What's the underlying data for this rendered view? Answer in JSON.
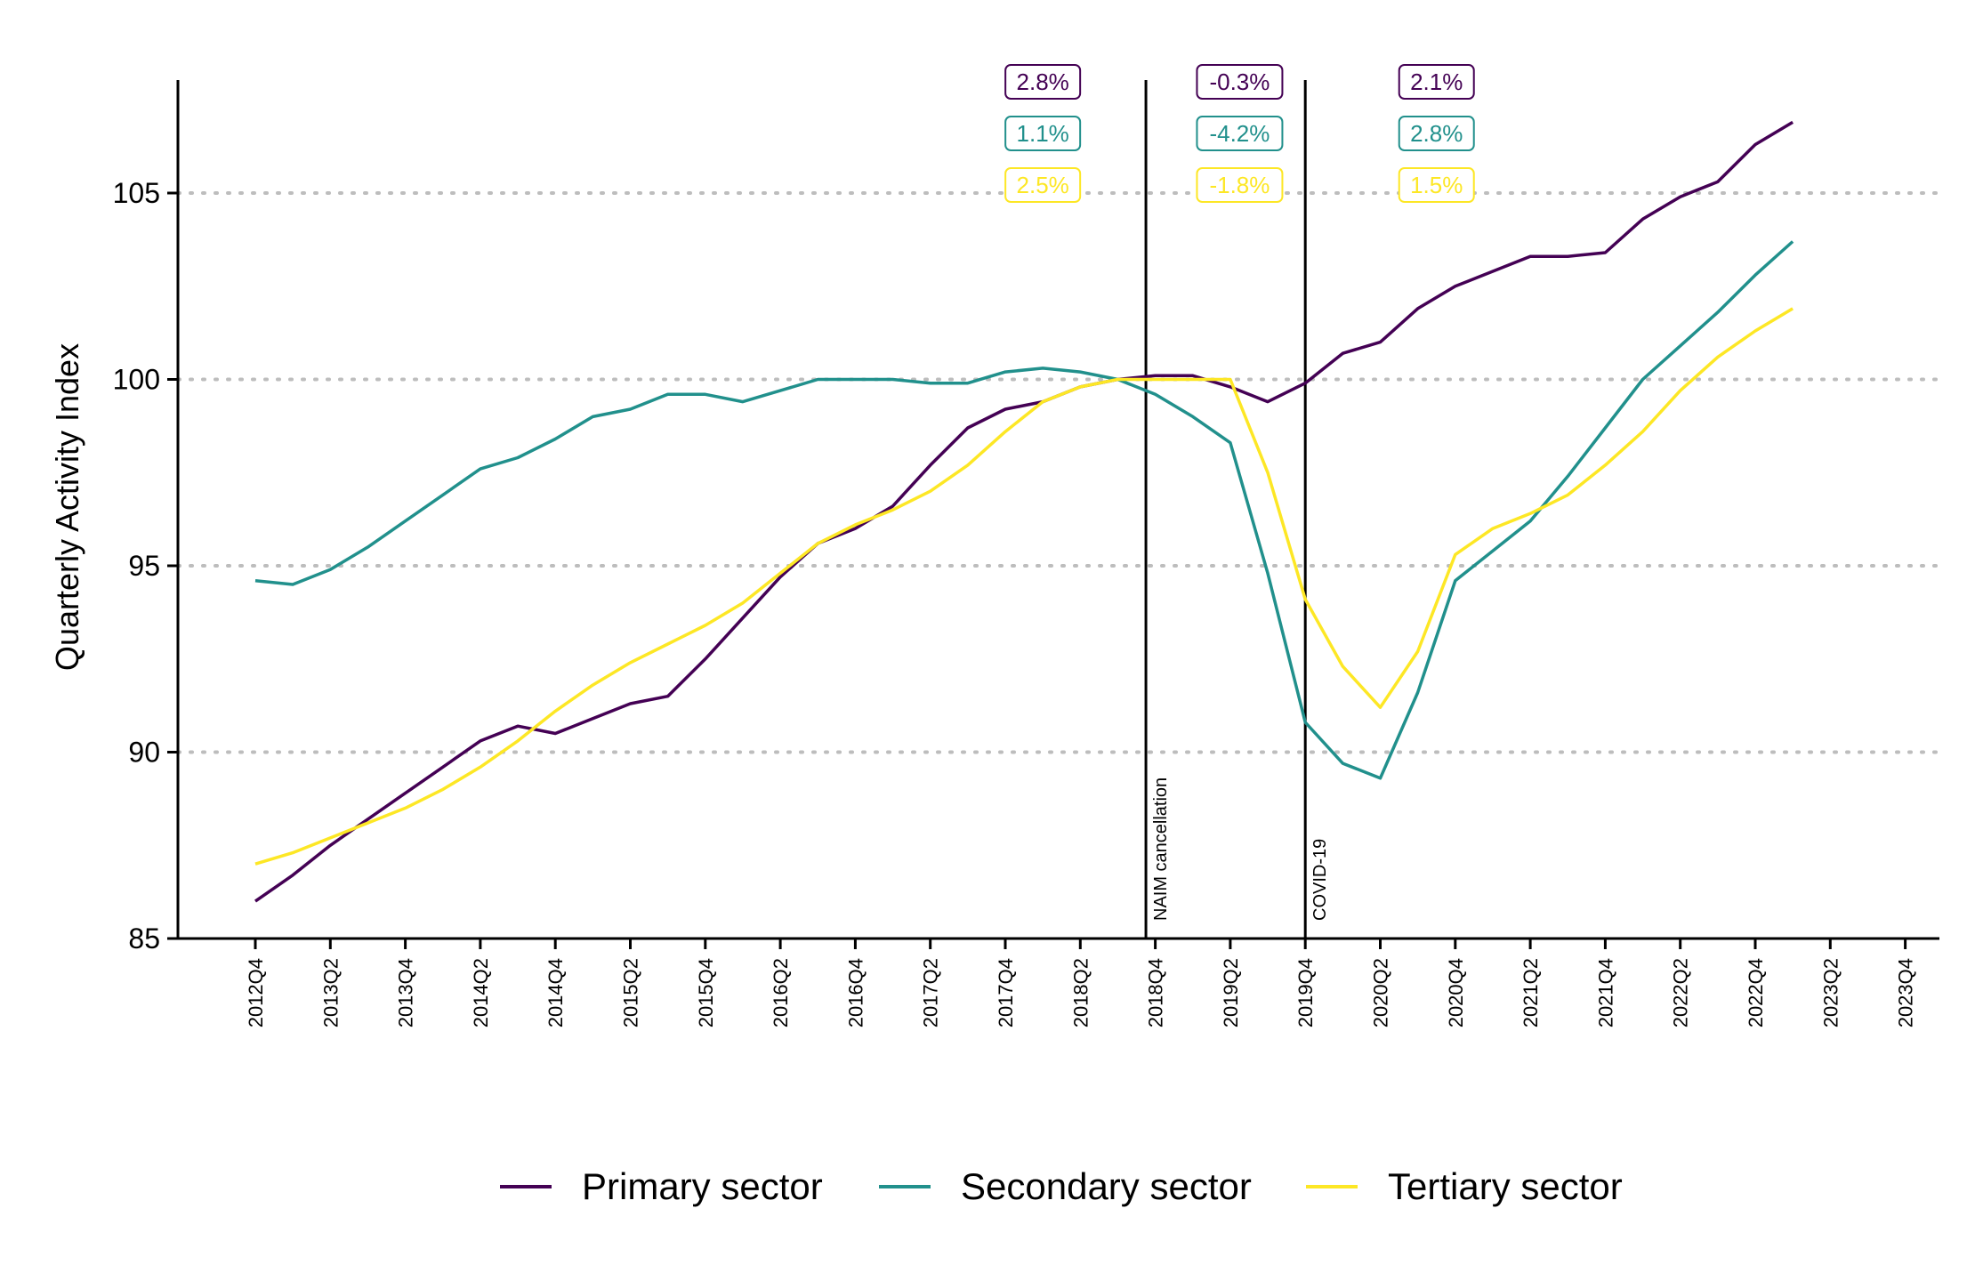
{
  "chart_data": {
    "type": "line",
    "title": "",
    "xlabel": "",
    "ylabel": "Quarterly Activity Index",
    "ylim": [
      85,
      108
    ],
    "yticks": [
      85,
      90,
      95,
      100,
      105
    ],
    "grid": "horizontal dotted at 90, 95, 100, 105",
    "legend_position": "bottom",
    "x": [
      "2012Q4",
      "2013Q1",
      "2013Q2",
      "2013Q3",
      "2013Q4",
      "2014Q1",
      "2014Q2",
      "2014Q3",
      "2014Q4",
      "2015Q1",
      "2015Q2",
      "2015Q3",
      "2015Q4",
      "2016Q1",
      "2016Q2",
      "2016Q3",
      "2016Q4",
      "2017Q1",
      "2017Q2",
      "2017Q3",
      "2017Q4",
      "2018Q1",
      "2018Q2",
      "2018Q3",
      "2018Q4",
      "2019Q1",
      "2019Q2",
      "2019Q3",
      "2019Q4",
      "2020Q1",
      "2020Q2",
      "2020Q3",
      "2020Q4",
      "2021Q1",
      "2021Q2",
      "2021Q3",
      "2021Q4",
      "2022Q1",
      "2022Q2",
      "2022Q3",
      "2022Q4",
      "2023Q1"
    ],
    "xticks": [
      "2012Q4",
      "2013Q2",
      "2013Q4",
      "2014Q2",
      "2014Q4",
      "2015Q2",
      "2015Q4",
      "2016Q2",
      "2016Q4",
      "2017Q2",
      "2017Q4",
      "2018Q2",
      "2018Q4",
      "2019Q2",
      "2019Q4",
      "2020Q2",
      "2020Q4",
      "2021Q2",
      "2021Q4",
      "2022Q2",
      "2022Q4",
      "2023Q2",
      "2023Q4"
    ],
    "series": [
      {
        "name": "Primary sector",
        "color": "#440154",
        "values": [
          86.0,
          86.7,
          87.5,
          88.2,
          88.9,
          89.6,
          90.3,
          90.7,
          90.5,
          90.9,
          91.3,
          91.5,
          92.5,
          93.6,
          94.7,
          95.6,
          96.0,
          96.6,
          97.7,
          98.7,
          99.2,
          99.4,
          99.8,
          100.0,
          100.1,
          100.1,
          99.8,
          99.4,
          99.9,
          100.7,
          101.0,
          101.9,
          102.5,
          102.9,
          103.3,
          103.3,
          103.4,
          104.3,
          104.9,
          105.3,
          106.3,
          106.9
        ]
      },
      {
        "name": "Secondary sector",
        "color": "#21908C",
        "values": [
          94.6,
          94.5,
          94.9,
          95.5,
          96.2,
          96.9,
          97.6,
          97.9,
          98.4,
          99.0,
          99.2,
          99.6,
          99.6,
          99.4,
          99.7,
          100.0,
          100.0,
          100.0,
          99.9,
          99.9,
          100.2,
          100.3,
          100.2,
          100.0,
          99.6,
          99.0,
          98.3,
          94.8,
          90.8,
          89.7,
          89.3,
          91.6,
          94.6,
          95.4,
          96.2,
          97.4,
          98.7,
          100.0,
          100.9,
          101.8,
          102.8,
          103.7
        ]
      },
      {
        "name": "Tertiary sector",
        "color": "#FDE725",
        "values": [
          87.0,
          87.3,
          87.7,
          88.1,
          88.5,
          89.0,
          89.6,
          90.3,
          91.1,
          91.8,
          92.4,
          92.9,
          93.4,
          94.0,
          94.8,
          95.6,
          96.1,
          96.5,
          97.0,
          97.7,
          98.6,
          99.4,
          99.8,
          100.0,
          100.0,
          100.0,
          100.0,
          97.5,
          94.1,
          92.3,
          91.2,
          92.7,
          95.3,
          96.0,
          96.4,
          96.9,
          97.7,
          98.6,
          99.7,
          100.6,
          101.3,
          101.9
        ]
      }
    ],
    "events": [
      {
        "label": "NAIM cancellation",
        "x": 23.75
      },
      {
        "label": "COVID-19",
        "x": 28.0
      }
    ],
    "annotations": [
      {
        "text": "2.8%",
        "series": "Primary sector",
        "x": 21.0
      },
      {
        "text": "1.1%",
        "series": "Secondary sector",
        "x": 21.0
      },
      {
        "text": "2.5%",
        "series": "Tertiary sector",
        "x": 21.0
      },
      {
        "text": "-0.3%",
        "series": "Primary sector",
        "x": 26.25
      },
      {
        "text": "-4.2%",
        "series": "Secondary sector",
        "x": 26.25
      },
      {
        "text": "-1.8%",
        "series": "Tertiary sector",
        "x": 26.25
      },
      {
        "text": "2.1%",
        "series": "Primary sector",
        "x": 31.5
      },
      {
        "text": "2.8%",
        "series": "Secondary sector",
        "x": 31.5
      },
      {
        "text": "1.5%",
        "series": "Tertiary sector",
        "x": 31.5
      }
    ]
  }
}
